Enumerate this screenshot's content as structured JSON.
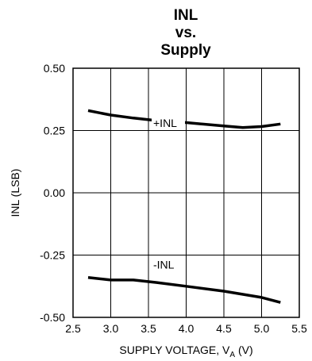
{
  "chart_data": {
    "type": "line",
    "title": [
      "INL",
      "vs.",
      "Supply"
    ],
    "xlabel": "SUPPLY VOLTAGE, V",
    "xlabel_subscript": "A",
    "xlabel_unit": " (V)",
    "ylabel": "INL (LSB)",
    "xlim": [
      2.5,
      5.5
    ],
    "ylim": [
      -0.5,
      0.5
    ],
    "x_ticks": [
      2.5,
      3.0,
      3.5,
      4.0,
      4.5,
      5.0,
      5.5
    ],
    "x_tick_labels": [
      "2.5",
      "3.0",
      "3.5",
      "4.0",
      "4.5",
      "5.0",
      "5.5"
    ],
    "y_ticks": [
      0.5,
      0.25,
      0.0,
      -0.25,
      -0.5
    ],
    "y_tick_labels": [
      "0.50",
      "0.25",
      "0.00",
      "-0.25",
      "-0.50"
    ],
    "grid": true,
    "series": [
      {
        "name": "+INL",
        "x": [
          2.7,
          3.0,
          3.3,
          3.6,
          4.0,
          4.5,
          4.75,
          5.0,
          5.25
        ],
        "y": [
          0.33,
          0.312,
          0.3,
          0.29,
          0.282,
          0.268,
          0.262,
          0.266,
          0.276
        ]
      },
      {
        "name": "-INL",
        "x": [
          2.7,
          3.0,
          3.3,
          3.6,
          4.0,
          4.5,
          5.0,
          5.25
        ],
        "y": [
          -0.34,
          -0.35,
          -0.35,
          -0.36,
          -0.375,
          -0.395,
          -0.42,
          -0.44
        ]
      }
    ]
  }
}
